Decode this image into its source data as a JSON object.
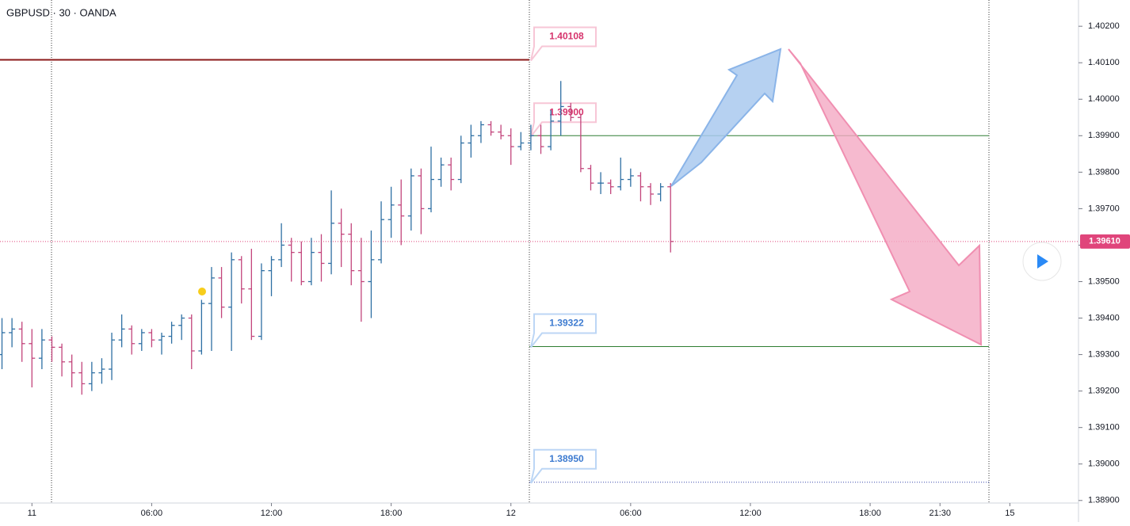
{
  "chart_data": {
    "type": "ohlc",
    "title": "GBPUSD · 30 · OANDA",
    "up_color": "#2e6fa3",
    "down_color": "#c2447b",
    "x": [
      0,
      1,
      2,
      3,
      4,
      5,
      6,
      7,
      8,
      9,
      10,
      11,
      12,
      13,
      14,
      15,
      16,
      17,
      18,
      19,
      20,
      21,
      22,
      23,
      24,
      25,
      26,
      27,
      28,
      29,
      30,
      31,
      32,
      33,
      34,
      35,
      36,
      37,
      38,
      39,
      40,
      41,
      42,
      43,
      44,
      45,
      46,
      47,
      48,
      49,
      50,
      51,
      52,
      53,
      54,
      55,
      56,
      57,
      58,
      59,
      60,
      61,
      62,
      63,
      64,
      65,
      66,
      67
    ],
    "open": [
      1.393,
      1.3936,
      1.3937,
      1.3933,
      1.3929,
      1.3934,
      1.3932,
      1.3928,
      1.3925,
      1.3922,
      1.3925,
      1.3926,
      1.3934,
      1.3937,
      1.3933,
      1.3936,
      1.3934,
      1.3935,
      1.3938,
      1.394,
      1.3931,
      1.3944,
      1.3951,
      1.3943,
      1.3956,
      1.3948,
      1.3935,
      1.3953,
      1.3956,
      1.396,
      1.3958,
      1.395,
      1.3958,
      1.3955,
      1.3966,
      1.3963,
      1.3953,
      1.395,
      1.3956,
      1.3967,
      1.3971,
      1.3968,
      1.3979,
      1.397,
      1.3978,
      1.3982,
      1.3978,
      1.3988,
      1.399,
      1.3993,
      1.3991,
      1.399,
      1.3987,
      1.3988,
      1.399,
      1.3987,
      1.3994,
      1.3998,
      1.3995,
      1.3981,
      1.3977,
      1.3977,
      1.3976,
      1.3978,
      1.3979,
      1.3976,
      1.3974,
      1.3976
    ],
    "high": [
      1.394,
      1.394,
      1.3939,
      1.3937,
      1.3937,
      1.3935,
      1.3933,
      1.393,
      1.3928,
      1.3928,
      1.3929,
      1.3936,
      1.3941,
      1.3938,
      1.3937,
      1.3937,
      1.3936,
      1.3939,
      1.3941,
      1.3941,
      1.3945,
      1.3954,
      1.3954,
      1.3958,
      1.3957,
      1.3959,
      1.3955,
      1.3957,
      1.3966,
      1.3962,
      1.3961,
      1.3962,
      1.3963,
      1.3975,
      1.397,
      1.3966,
      1.3962,
      1.3964,
      1.3972,
      1.3976,
      1.3978,
      1.3981,
      1.3981,
      1.3987,
      1.3984,
      1.3984,
      1.399,
      1.3993,
      1.3994,
      1.3994,
      1.3993,
      1.3992,
      1.3991,
      1.3993,
      1.3993,
      1.3997,
      1.4005,
      1.3999,
      1.3996,
      1.3982,
      1.398,
      1.3978,
      1.3984,
      1.3981,
      1.398,
      1.3977,
      1.3977,
      1.3977
    ],
    "low": [
      1.3926,
      1.3932,
      1.3928,
      1.3921,
      1.3926,
      1.3928,
      1.3924,
      1.3921,
      1.3919,
      1.392,
      1.3922,
      1.3923,
      1.3932,
      1.393,
      1.3931,
      1.3932,
      1.393,
      1.3933,
      1.3934,
      1.3926,
      1.393,
      1.3931,
      1.394,
      1.3931,
      1.3944,
      1.3934,
      1.3934,
      1.3946,
      1.3954,
      1.395,
      1.3949,
      1.3949,
      1.395,
      1.3952,
      1.3954,
      1.3949,
      1.3939,
      1.394,
      1.3955,
      1.3962,
      1.396,
      1.3964,
      1.3963,
      1.3969,
      1.3976,
      1.3975,
      1.3977,
      1.3984,
      1.3988,
      1.399,
      1.3989,
      1.3982,
      1.3986,
      1.3986,
      1.3985,
      1.3986,
      1.399,
      1.3994,
      1.398,
      1.3975,
      1.3974,
      1.3974,
      1.3975,
      1.3976,
      1.3972,
      1.3971,
      1.3972,
      1.3958
    ],
    "close": [
      1.3936,
      1.3937,
      1.3933,
      1.3929,
      1.3934,
      1.3932,
      1.3928,
      1.3925,
      1.3922,
      1.3925,
      1.3926,
      1.3934,
      1.3937,
      1.3933,
      1.3936,
      1.3934,
      1.3935,
      1.3938,
      1.394,
      1.3931,
      1.3944,
      1.3951,
      1.3943,
      1.3956,
      1.3948,
      1.3935,
      1.3953,
      1.3956,
      1.396,
      1.3958,
      1.395,
      1.3958,
      1.3955,
      1.3966,
      1.3963,
      1.3953,
      1.395,
      1.3956,
      1.3967,
      1.3971,
      1.3968,
      1.3979,
      1.397,
      1.3978,
      1.3982,
      1.3978,
      1.3988,
      1.399,
      1.3993,
      1.3991,
      1.399,
      1.3987,
      1.3988,
      1.399,
      1.3987,
      1.3994,
      1.3998,
      1.3995,
      1.3981,
      1.3977,
      1.3977,
      1.3976,
      1.3978,
      1.3979,
      1.3976,
      1.3974,
      1.3976,
      1.3961
    ],
    "xlim": [
      -0.2,
      107.8
    ],
    "xticks": [
      {
        "value": 3,
        "label": "11"
      },
      {
        "value": 15,
        "label": "06:00"
      },
      {
        "value": 27,
        "label": "12:00"
      },
      {
        "value": 39,
        "label": "18:00"
      },
      {
        "value": 51,
        "label": "12"
      },
      {
        "value": 63,
        "label": "06:00"
      },
      {
        "value": 75,
        "label": "12:00"
      },
      {
        "value": 87,
        "label": "18:00"
      },
      {
        "value": 94,
        "label": "21:30"
      },
      {
        "value": 101,
        "label": "15"
      }
    ],
    "ylim": [
      1.38893,
      1.40272
    ],
    "yticks": [
      {
        "value": 1.389,
        "label": "1.38900"
      },
      {
        "value": 1.39,
        "label": "1.39000"
      },
      {
        "value": 1.391,
        "label": "1.39100"
      },
      {
        "value": 1.392,
        "label": "1.39200"
      },
      {
        "value": 1.393,
        "label": "1.39300"
      },
      {
        "value": 1.394,
        "label": "1.39400"
      },
      {
        "value": 1.395,
        "label": "1.39500"
      },
      {
        "value": 1.396,
        "label": "1.39600"
      },
      {
        "value": 1.397,
        "label": "1.39700"
      },
      {
        "value": 1.398,
        "label": "1.39800"
      },
      {
        "value": 1.399,
        "label": "1.39900"
      },
      {
        "value": 1.4,
        "label": "1.40000"
      },
      {
        "value": 1.401,
        "label": "1.40100"
      },
      {
        "value": 1.402,
        "label": "1.40200"
      }
    ],
    "levels": [
      {
        "value": 1.40108,
        "label": "1.40108",
        "color": "#8b1a1a",
        "text_color": "#d6336c"
      },
      {
        "value": 1.399,
        "label": "1.39900",
        "color": "#2e7d32",
        "text_color": "#d6336c"
      },
      {
        "value": 1.39322,
        "label": "1.39322",
        "color": "#2e7d32",
        "text_color": "#3d7bd0"
      },
      {
        "value": 1.3895,
        "label": "1.38950",
        "color": "#3949ab",
        "text_color": "#3d7bd0"
      }
    ],
    "last_price": {
      "value": 1.3961,
      "label": "1.39610",
      "color": "#e0457b"
    }
  }
}
